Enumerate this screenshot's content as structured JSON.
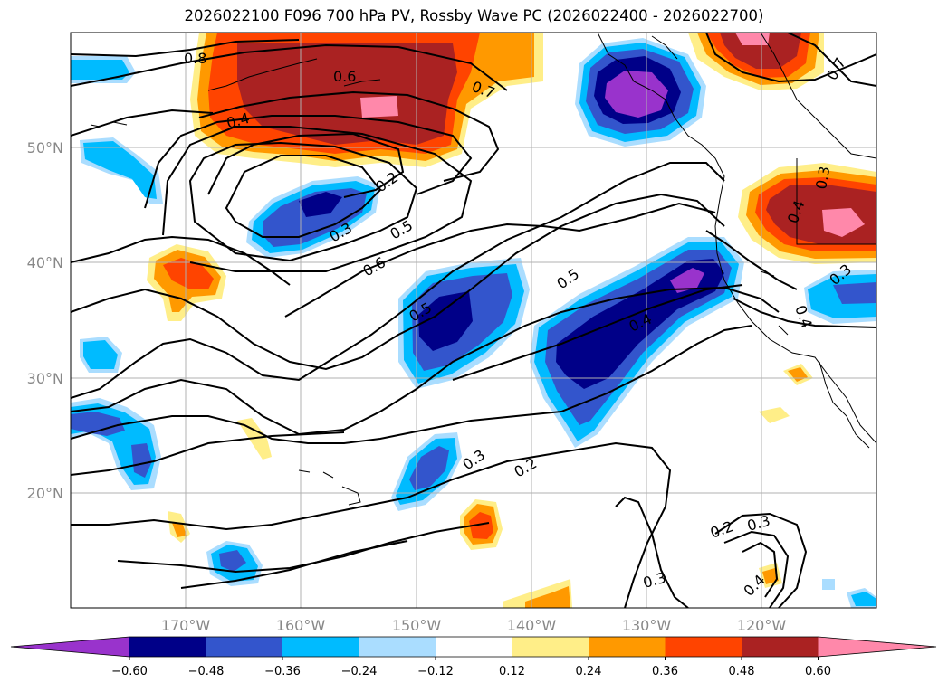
{
  "title": "2026022100 F096 700 hPa PV, Rossby Wave PC (2026022400 - 2026022700)",
  "lat_labels": [
    "50°N",
    "40°N",
    "30°N",
    "20°N"
  ],
  "lon_labels": [
    "170°W",
    "160°W",
    "150°W",
    "140°W",
    "130°W",
    "120°W"
  ],
  "colorbar": {
    "ticks": [
      "−0.60",
      "−0.48",
      "−0.36",
      "−0.24",
      "−0.12",
      "0.12",
      "0.24",
      "0.36",
      "0.48",
      "0.60"
    ],
    "colors": [
      "#9933cc",
      "#000088",
      "#3355cc",
      "#00bbff",
      "#aaddff",
      "#ffffff",
      "#ffee88",
      "#ff9900",
      "#ff4400",
      "#aa2222",
      "#ff88aa"
    ]
  },
  "contour_labels": [
    "0.8",
    "0.6",
    "0.4",
    "0.7",
    "0.2",
    "0.3",
    "0.5",
    "0.6",
    "0.5",
    "0.5",
    "0.4",
    "0.3",
    "0.2",
    "0.2",
    "0.3",
    "0.3",
    "0.4",
    "0.7",
    "0.3",
    "0.4",
    "0.3",
    "0.4"
  ],
  "colors": {
    "neg_lightblue": "#aaddff",
    "neg_cyan": "#00bbff",
    "neg_blue": "#3355cc",
    "neg_navy": "#000088",
    "neg_purple": "#9933cc",
    "pos_yellow": "#ffee88",
    "pos_orange": "#ff9900",
    "pos_redorange": "#ff4400",
    "pos_darkred": "#aa2222",
    "pos_pink": "#ff88aa"
  }
}
